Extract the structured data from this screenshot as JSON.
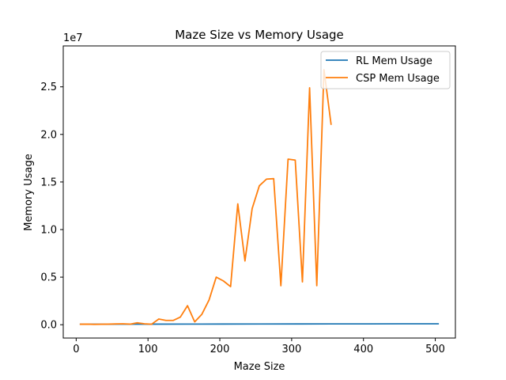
{
  "chart_data": {
    "type": "line",
    "title": "Maze Size vs Memory Usage",
    "xlabel": "Maze Size",
    "ylabel": "Memory Usage",
    "y_offset_text": "1e7",
    "xlim": [
      -18,
      528
    ],
    "ylim": [
      -1400000,
      29300000
    ],
    "x_ticks": [
      0,
      100,
      200,
      300,
      400,
      500
    ],
    "x_tick_labels": [
      "0",
      "100",
      "200",
      "300",
      "400",
      "500"
    ],
    "y_ticks": [
      0,
      5000000,
      10000000,
      15000000,
      20000000,
      25000000
    ],
    "y_tick_labels": [
      "0.0",
      "0.5",
      "1.0",
      "1.5",
      "2.0",
      "2.5"
    ],
    "legend_position": "upper right",
    "grid": false,
    "series": [
      {
        "name": "RL Mem Usage",
        "color": "#1f77b4",
        "x": [
          5,
          55,
          105,
          155,
          205,
          255,
          305,
          355,
          405,
          455,
          505
        ],
        "y": [
          50000,
          55000,
          60000,
          65000,
          70000,
          75000,
          80000,
          85000,
          90000,
          95000,
          100000
        ]
      },
      {
        "name": "CSP Mem Usage",
        "color": "#ff7f0e",
        "x": [
          5,
          15,
          25,
          35,
          45,
          55,
          65,
          75,
          85,
          95,
          105,
          115,
          125,
          135,
          145,
          155,
          165,
          175,
          185,
          195,
          205,
          215,
          225,
          235,
          245,
          255,
          265,
          275,
          285,
          295,
          305,
          315,
          325,
          335,
          345,
          355
        ],
        "y": [
          50000,
          60000,
          40000,
          50000,
          60000,
          80000,
          100000,
          60000,
          200000,
          100000,
          50000,
          600000,
          450000,
          450000,
          800000,
          2000000,
          300000,
          1100000,
          2600000,
          5000000,
          4600000,
          4000000,
          12700000,
          6700000,
          12200000,
          14600000,
          15300000,
          15350000,
          4100000,
          17400000,
          17300000,
          4500000,
          24900000,
          4100000,
          26800000,
          21000000
        ]
      }
    ]
  }
}
